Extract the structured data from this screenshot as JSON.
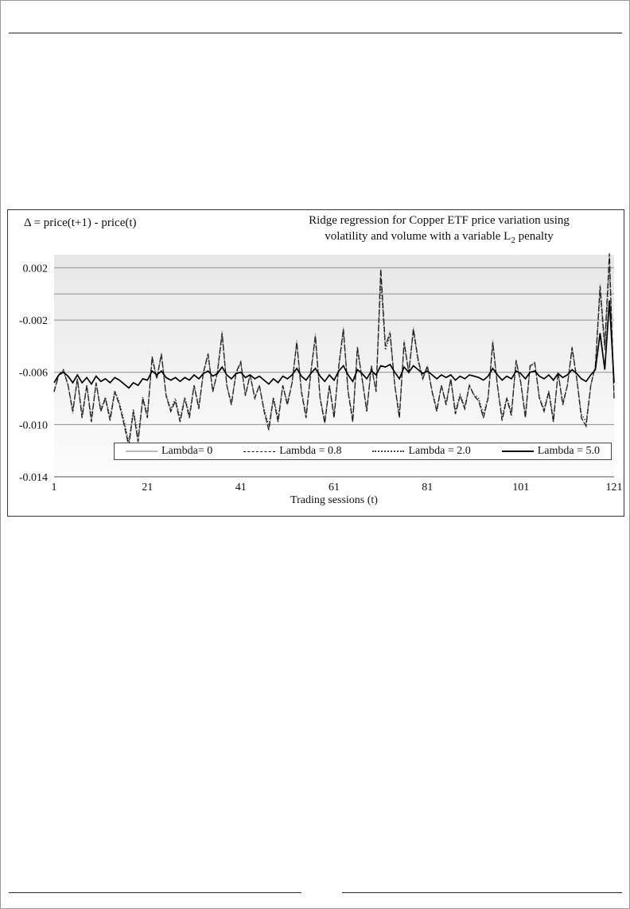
{
  "chart": {
    "title_line1": "Ridge regression for Copper ETF price variation using",
    "title_line2_pre": "volatility and volume with a variable L",
    "title_line2_sub": "2",
    "title_line2_post": " penalty"
  },
  "chart_data": {
    "type": "line",
    "title": "Ridge regression for Copper ETF price variation using volatility and volume with a variable L2 penalty",
    "xlabel": "Trading sessions (t)",
    "ylabel": "Δ = price(t+1) - price(t)",
    "xlim": [
      1,
      121
    ],
    "ylim": [
      -0.014,
      0.003
    ],
    "x_ticks": [
      "1",
      "21",
      "41",
      "61",
      "81",
      "101",
      "121"
    ],
    "x_tick_values": [
      1,
      21,
      41,
      61,
      81,
      101,
      121
    ],
    "y_ticks": [
      "0.002",
      "-0.002",
      "-0.006",
      "-0.010",
      "-0.014"
    ],
    "y_tick_values": [
      0.002,
      -0.002,
      -0.006,
      -0.01,
      -0.014
    ],
    "gridlines": [
      0.002,
      0,
      -0.002,
      -0.006,
      -0.01
    ],
    "grid": true,
    "legend_position": "bottom-center-inside",
    "series": [
      {
        "key": "lambda-0",
        "name": "Lambda= 0",
        "dash": "solid",
        "color": "#b8b8b8",
        "width": 1.2,
        "values": [
          -0.0075,
          -0.0062,
          -0.0058,
          -0.007,
          -0.0092,
          -0.0065,
          -0.0095,
          -0.007,
          -0.0098,
          -0.0068,
          -0.009,
          -0.008,
          -0.0097,
          -0.0075,
          -0.0085,
          -0.01,
          -0.0118,
          -0.009,
          -0.0115,
          -0.008,
          -0.0095,
          -0.0048,
          -0.0065,
          -0.0045,
          -0.0078,
          -0.009,
          -0.0082,
          -0.0098,
          -0.008,
          -0.0095,
          -0.007,
          -0.0088,
          -0.006,
          -0.0045,
          -0.0075,
          -0.006,
          -0.0028,
          -0.007,
          -0.0085,
          -0.006,
          -0.0052,
          -0.0078,
          -0.0062,
          -0.008,
          -0.007,
          -0.009,
          -0.0105,
          -0.008,
          -0.0098,
          -0.007,
          -0.0085,
          -0.0068,
          -0.0035,
          -0.0075,
          -0.0095,
          -0.006,
          -0.003,
          -0.008,
          -0.01,
          -0.007,
          -0.0095,
          -0.0055,
          -0.0025,
          -0.0075,
          -0.0098,
          -0.004,
          -0.0065,
          -0.009,
          -0.0055,
          -0.0075,
          0.0018,
          -0.004,
          -0.0028,
          -0.007,
          -0.0095,
          -0.0035,
          -0.006,
          -0.0025,
          -0.005,
          -0.0065,
          -0.0055,
          -0.0075,
          -0.009,
          -0.007,
          -0.0085,
          -0.0065,
          -0.0092,
          -0.0078,
          -0.0088,
          -0.007,
          -0.0078,
          -0.0082,
          -0.0095,
          -0.008,
          -0.0035,
          -0.007,
          -0.0097,
          -0.008,
          -0.0093,
          -0.005,
          -0.0068,
          -0.0095,
          -0.0055,
          -0.0052,
          -0.008,
          -0.009,
          -0.0075,
          -0.0098,
          -0.006,
          -0.0085,
          -0.007,
          -0.004,
          -0.0065,
          -0.0095,
          -0.0102,
          -0.007,
          -0.0055,
          0.0008,
          -0.004,
          0.003,
          -0.008
        ]
      },
      {
        "key": "lambda-0.8",
        "name": "Lambda = 0.8",
        "dash": "dashed",
        "color": "#1a1a1a",
        "width": 1.3,
        "values": [
          -0.0075,
          -0.0062,
          -0.0058,
          -0.007,
          -0.009,
          -0.0065,
          -0.0095,
          -0.007,
          -0.0098,
          -0.0068,
          -0.009,
          -0.008,
          -0.0097,
          -0.0075,
          -0.0085,
          -0.01,
          -0.0116,
          -0.009,
          -0.0113,
          -0.008,
          -0.0095,
          -0.0048,
          -0.0065,
          -0.0046,
          -0.0078,
          -0.009,
          -0.0082,
          -0.0098,
          -0.008,
          -0.0095,
          -0.007,
          -0.0088,
          -0.006,
          -0.0046,
          -0.0075,
          -0.006,
          -0.003,
          -0.007,
          -0.0085,
          -0.006,
          -0.0052,
          -0.0078,
          -0.0062,
          -0.008,
          -0.007,
          -0.009,
          -0.0104,
          -0.008,
          -0.0098,
          -0.007,
          -0.0085,
          -0.0068,
          -0.0037,
          -0.0075,
          -0.0095,
          -0.006,
          -0.0032,
          -0.008,
          -0.0099,
          -0.007,
          -0.0095,
          -0.0055,
          -0.0027,
          -0.0075,
          -0.0098,
          -0.0041,
          -0.0065,
          -0.009,
          -0.0055,
          -0.0075,
          0.0019,
          -0.004,
          -0.003,
          -0.007,
          -0.0095,
          -0.0037,
          -0.006,
          -0.0027,
          -0.005,
          -0.0065,
          -0.0055,
          -0.0075,
          -0.009,
          -0.007,
          -0.0085,
          -0.0065,
          -0.0092,
          -0.0078,
          -0.0088,
          -0.007,
          -0.0078,
          -0.0082,
          -0.0095,
          -0.008,
          -0.0037,
          -0.007,
          -0.0097,
          -0.008,
          -0.0093,
          -0.0051,
          -0.0068,
          -0.0095,
          -0.0055,
          -0.0053,
          -0.008,
          -0.009,
          -0.0075,
          -0.0098,
          -0.006,
          -0.0085,
          -0.007,
          -0.0041,
          -0.0065,
          -0.0095,
          -0.0101,
          -0.007,
          -0.0055,
          0.0006,
          -0.004,
          0.0031,
          -0.008
        ]
      },
      {
        "key": "lambda-2.0",
        "name": "Lambda = 2.0",
        "dash": "dotted",
        "color": "#333333",
        "width": 1.3,
        "values": [
          -0.0074,
          -0.0062,
          -0.0059,
          -0.007,
          -0.0089,
          -0.0065,
          -0.0092,
          -0.007,
          -0.0095,
          -0.0068,
          -0.0088,
          -0.0079,
          -0.0094,
          -0.0074,
          -0.0083,
          -0.0097,
          -0.0113,
          -0.0088,
          -0.011,
          -0.0079,
          -0.0092,
          -0.005,
          -0.0065,
          -0.0047,
          -0.0077,
          -0.0088,
          -0.008,
          -0.0095,
          -0.0079,
          -0.0092,
          -0.007,
          -0.0086,
          -0.0061,
          -0.0047,
          -0.0074,
          -0.0061,
          -0.0032,
          -0.007,
          -0.0083,
          -0.0061,
          -0.0053,
          -0.0077,
          -0.0062,
          -0.0079,
          -0.007,
          -0.0088,
          -0.0101,
          -0.0079,
          -0.0095,
          -0.007,
          -0.0083,
          -0.0068,
          -0.0038,
          -0.0074,
          -0.0092,
          -0.0061,
          -0.0034,
          -0.0079,
          -0.0097,
          -0.007,
          -0.0092,
          -0.0056,
          -0.0029,
          -0.0074,
          -0.0095,
          -0.0043,
          -0.0065,
          -0.0088,
          -0.0056,
          -0.0074,
          0.001,
          -0.0043,
          -0.0032,
          -0.007,
          -0.0092,
          -0.0038,
          -0.0061,
          -0.0029,
          -0.0052,
          -0.0065,
          -0.0056,
          -0.0074,
          -0.0088,
          -0.007,
          -0.0083,
          -0.0065,
          -0.0089,
          -0.0077,
          -0.0086,
          -0.007,
          -0.0077,
          -0.008,
          -0.0092,
          -0.0079,
          -0.0038,
          -0.007,
          -0.0094,
          -0.0079,
          -0.009,
          -0.0052,
          -0.0068,
          -0.0092,
          -0.0056,
          -0.0053,
          -0.0079,
          -0.0088,
          -0.0074,
          -0.0095,
          -0.0061,
          -0.0083,
          -0.007,
          -0.0043,
          -0.0065,
          -0.0092,
          -0.0098,
          -0.007,
          -0.0056,
          0.0001,
          -0.0043,
          0.0021,
          -0.0079
        ]
      },
      {
        "key": "lambda-5.0",
        "name": "Lambda = 5.0",
        "dash": "solid",
        "color": "#000000",
        "width": 1.7,
        "values": [
          -0.0068,
          -0.0062,
          -0.006,
          -0.0063,
          -0.0068,
          -0.0062,
          -0.0068,
          -0.0064,
          -0.0069,
          -0.0063,
          -0.0067,
          -0.0065,
          -0.0068,
          -0.0064,
          -0.0066,
          -0.0069,
          -0.0072,
          -0.0068,
          -0.007,
          -0.0065,
          -0.0066,
          -0.0059,
          -0.0062,
          -0.0059,
          -0.0064,
          -0.0066,
          -0.0064,
          -0.0067,
          -0.0064,
          -0.0066,
          -0.0062,
          -0.0065,
          -0.0061,
          -0.0059,
          -0.0063,
          -0.0061,
          -0.0056,
          -0.0062,
          -0.0065,
          -0.0061,
          -0.006,
          -0.0064,
          -0.0062,
          -0.0065,
          -0.0063,
          -0.0066,
          -0.0069,
          -0.0065,
          -0.0068,
          -0.0063,
          -0.0065,
          -0.0062,
          -0.0057,
          -0.0063,
          -0.0066,
          -0.0061,
          -0.0057,
          -0.0063,
          -0.0067,
          -0.0062,
          -0.0066,
          -0.0059,
          -0.0055,
          -0.0062,
          -0.0067,
          -0.0058,
          -0.0061,
          -0.0065,
          -0.0059,
          -0.0062,
          -0.0055,
          -0.0056,
          -0.0054,
          -0.006,
          -0.0065,
          -0.0056,
          -0.006,
          -0.0055,
          -0.0058,
          -0.0061,
          -0.0059,
          -0.0062,
          -0.0065,
          -0.0062,
          -0.0064,
          -0.0062,
          -0.0066,
          -0.0063,
          -0.0065,
          -0.0062,
          -0.0063,
          -0.0064,
          -0.0066,
          -0.0063,
          -0.0057,
          -0.0062,
          -0.0066,
          -0.0063,
          -0.0065,
          -0.0059,
          -0.0061,
          -0.0065,
          -0.006,
          -0.0059,
          -0.0063,
          -0.0065,
          -0.0062,
          -0.0066,
          -0.0061,
          -0.0064,
          -0.0062,
          -0.0058,
          -0.0061,
          -0.0065,
          -0.0067,
          -0.0062,
          -0.0058,
          -0.003,
          -0.0058,
          -0.0005,
          -0.0068
        ]
      }
    ]
  }
}
